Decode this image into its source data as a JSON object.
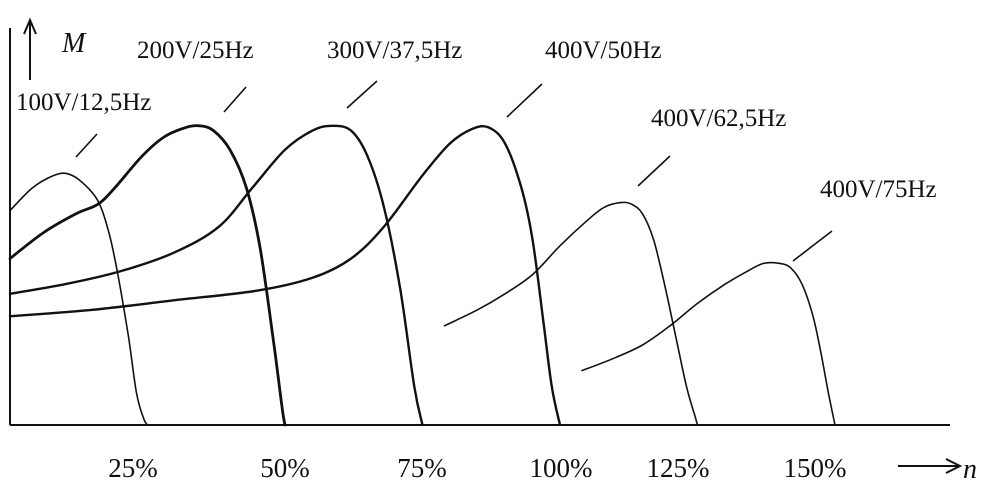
{
  "chart_data": {
    "type": "line",
    "title": "",
    "xlabel": "n",
    "ylabel": "M",
    "x_ticks": [
      "25%",
      "50%",
      "75%",
      "100%",
      "125%",
      "150%"
    ],
    "x_tick_values": [
      25,
      50,
      75,
      100,
      125,
      150
    ],
    "xlim": [
      0,
      155
    ],
    "ylim": [
      0,
      100
    ],
    "grid": false,
    "legend": "curve labels",
    "series": [
      {
        "name": "100V/12,5Hz",
        "x": [
          0,
          4,
          8,
          10.5,
          13,
          16,
          18,
          19.5,
          21.5,
          23,
          24.3,
          25
        ],
        "y": [
          67,
          74,
          78,
          78.5,
          76,
          70,
          60,
          48,
          28,
          10,
          2,
          0
        ]
      },
      {
        "name": "200V/25Hz",
        "x": [
          0,
          6,
          12,
          16,
          19,
          24,
          28,
          32,
          34.5,
          37,
          40,
          43,
          45.5,
          48,
          49.5,
          50
        ],
        "y": [
          52,
          60,
          66,
          69,
          74,
          84,
          90,
          93,
          93.5,
          92,
          86,
          74,
          55,
          25,
          5,
          0
        ]
      },
      {
        "name": "300V/37,5Hz",
        "x": [
          0,
          10,
          20,
          30,
          38,
          44,
          50,
          55,
          58.5,
          62,
          65,
          68,
          71,
          73.5,
          75
        ],
        "y": [
          41,
          44,
          48,
          54,
          62,
          74,
          86,
          92,
          93.5,
          92,
          84,
          68,
          42,
          12,
          0
        ]
      },
      {
        "name": "400V/50Hz",
        "x": [
          0,
          15,
          30,
          45,
          55,
          62,
          68,
          75,
          80,
          84,
          87,
          90,
          93,
          95,
          97,
          98.5,
          100
        ],
        "y": [
          34,
          36,
          39,
          42,
          46,
          52,
          62,
          78,
          88,
          92.5,
          93,
          88,
          74,
          58,
          32,
          12,
          0
        ]
      },
      {
        "name": "400V/62,5Hz",
        "x": [
          79,
          85,
          90,
          95,
          100,
          105,
          108,
          111,
          113,
          115,
          117,
          119,
          121,
          123,
          124.5,
          125
        ],
        "y": [
          31,
          36,
          41,
          47,
          56,
          64,
          68,
          69.5,
          69,
          66,
          58,
          44,
          28,
          12,
          3,
          0
        ]
      },
      {
        "name": "400V/75Hz",
        "x": [
          104,
          110,
          115,
          120,
          125,
          130,
          134,
          137,
          140,
          142,
          144,
          146,
          147.5,
          148.8,
          150
        ],
        "y": [
          17,
          21,
          25,
          31,
          38,
          44,
          48,
          50.5,
          50.5,
          49,
          44,
          34,
          22,
          10,
          0
        ]
      }
    ]
  }
}
